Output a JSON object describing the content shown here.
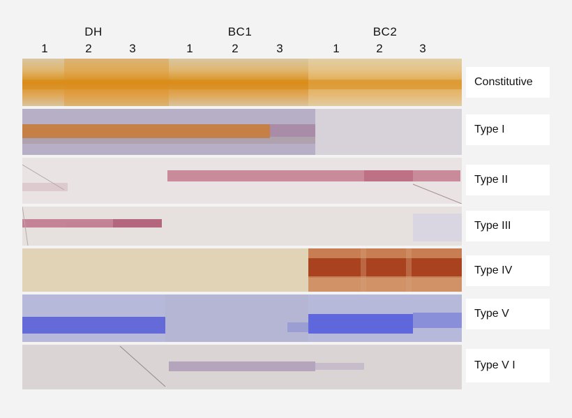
{
  "groups": [
    {
      "label": "DH",
      "lanes": [
        "1",
        "2",
        "3"
      ]
    },
    {
      "label": "BC1",
      "lanes": [
        "1",
        "2",
        "3"
      ]
    },
    {
      "label": "BC2",
      "lanes": [
        "1",
        "2",
        "3"
      ]
    }
  ],
  "rows": [
    {
      "label": "Constitutive",
      "background": "#d9c8a2",
      "band": "#d98f1e"
    },
    {
      "label": "Type I",
      "background": "#b7b0c7",
      "band": "#c9782f"
    },
    {
      "label": "Type II",
      "background": "#e9e3e3",
      "band": "#b95a72"
    },
    {
      "label": "Type III",
      "background": "#e7e2df",
      "band": "#b55b77"
    },
    {
      "label": "Type IV",
      "background": "#e1d4b7",
      "band": "#a8421f"
    },
    {
      "label": "Type V",
      "background": "#b7b9da",
      "band": "#5b63d8"
    },
    {
      "label": "Type V I",
      "background": "#dcd6d6",
      "band": "#a08cb1"
    }
  ]
}
